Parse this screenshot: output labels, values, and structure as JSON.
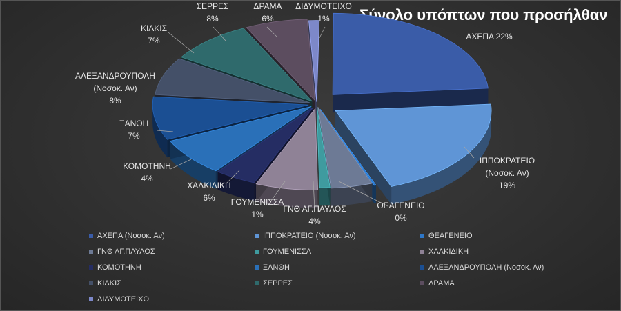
{
  "chart_data": {
    "type": "pie",
    "title": "Σύνολο υπόπτων που προσήλθαν",
    "slices": [
      {
        "name": "ΑΧΕΠΑ (Νοσοκ. Αν)",
        "label": [
          "ΑΧΕΠΑ  22%"
        ],
        "value": 22,
        "color": "#3a5ca8"
      },
      {
        "name": "ΙΠΠΟΚΡΑΤΕΙΟ (Νοσοκ. Αν)",
        "label": [
          "ΙΠΠΟΚΡΑΤΕΙΟ",
          "(Νοσοκ. Αν)",
          "19%"
        ],
        "value": 19,
        "color": "#5f95d6"
      },
      {
        "name": "ΘΕΑΓΕΝΕΙΟ",
        "label": [
          "ΘΕΑΓΕΝΕΙΟ",
          "0%"
        ],
        "value": 0,
        "color": "#2d77c8"
      },
      {
        "name": "ΓΝΘ ΑΓ.ΠΑΥΛΟΣ",
        "label": [
          "ΓΝΘ ΑΓ.ΠΑΥΛΟΣ",
          "4%"
        ],
        "value": 4,
        "color": "#6d7a95"
      },
      {
        "name": "ΓΟΥΜΕΝΙΣΣΑ",
        "label": [
          "ΓΟΥΜΕΝΙΣΣΑ",
          "1%"
        ],
        "value": 1,
        "color": "#3f9b9f"
      },
      {
        "name": "ΧΑΛΚΙΔΙΚΗ",
        "label": [
          "ΧΑΛΚΙΔΙΚΗ",
          "6%"
        ],
        "value": 6,
        "color": "#8f8296"
      },
      {
        "name": "ΚΟΜΟΤΗΝΗ",
        "label": [
          "ΚΟΜΟΤΗΝΗ",
          "4%"
        ],
        "value": 4,
        "color": "#252d63"
      },
      {
        "name": "ΞΑΝΘΗ",
        "label": [
          "ΞΑΝΘΗ",
          "7%"
        ],
        "value": 7,
        "color": "#2a70b8"
      },
      {
        "name": "ΑΛΕΞΑΝΔΡΟΥΠΟΛΗ (Νοσοκ. Αν)",
        "label": [
          "ΑΛΕΞΑΝΔΡΟΥΠΟΛΗ",
          "(Νοσοκ. Αν)",
          "8%"
        ],
        "value": 8,
        "color": "#1b4f93"
      },
      {
        "name": "ΚΙΛΚΙΣ",
        "label": [
          "ΚΙΛΚΙΣ",
          "7%"
        ],
        "value": 7,
        "color": "#445068"
      },
      {
        "name": "ΣΕΡΡΕΣ",
        "label": [
          "ΣΕΡΡΕΣ",
          "8%"
        ],
        "value": 8,
        "color": "#2f6a6c"
      },
      {
        "name": "ΔΡΑΜΑ",
        "label": [
          "ΔΡΑΜΑ",
          "6%"
        ],
        "value": 6,
        "color": "#5c4d5f"
      },
      {
        "name": "ΔΙΔΥΜΟΤΕΙΧΟ",
        "label": [
          "ΔΙΔΥΜΟΤΕΙΧΟ",
          "1%"
        ],
        "value": 1,
        "color": "#7d88c9"
      }
    ],
    "legend_position": "bottom",
    "chart_style": "3d-exploded"
  }
}
